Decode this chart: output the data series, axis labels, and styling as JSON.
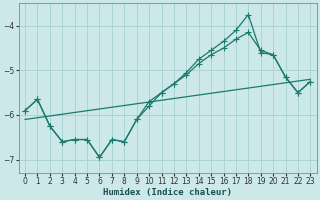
{
  "xlabel": "Humidex (Indice chaleur)",
  "bg_color": "#cce8e8",
  "grid_color": "#aad4d4",
  "line_color": "#1a7a6e",
  "xlim": [
    -0.5,
    23.5
  ],
  "ylim": [
    -7.3,
    -3.5
  ],
  "yticks": [
    -7,
    -6,
    -5,
    -4
  ],
  "xticks": [
    0,
    1,
    2,
    3,
    4,
    5,
    6,
    7,
    8,
    9,
    10,
    11,
    12,
    13,
    14,
    15,
    16,
    17,
    18,
    19,
    20,
    21,
    22,
    23
  ],
  "curve1_x": [
    0,
    1,
    2,
    3,
    4,
    5,
    6,
    7,
    8,
    9,
    10,
    11,
    12,
    13,
    14,
    15,
    16,
    17,
    18,
    19,
    20,
    21,
    22,
    23
  ],
  "curve1_y": [
    -5.9,
    -5.65,
    -6.25,
    -6.6,
    -6.55,
    -6.55,
    -6.95,
    -6.55,
    -6.6,
    -6.1,
    -5.8,
    -5.5,
    -5.3,
    -5.05,
    -4.75,
    -4.55,
    -4.35,
    -4.1,
    -3.75,
    -4.6,
    -4.65,
    -5.15,
    -5.5,
    -5.25
  ],
  "curve2_x": [
    0,
    1,
    2,
    3,
    4,
    5,
    6,
    7,
    8,
    9,
    10,
    11,
    12,
    13,
    14,
    15,
    16,
    17,
    18,
    19,
    20,
    21,
    22,
    23
  ],
  "curve2_y": [
    -5.9,
    -5.65,
    -6.25,
    -6.6,
    -6.55,
    -6.55,
    -6.95,
    -6.55,
    -6.6,
    -6.1,
    -5.7,
    -5.5,
    -5.3,
    -5.1,
    -4.85,
    -4.65,
    -4.5,
    -4.3,
    -4.15,
    -4.55,
    -4.65,
    -5.15,
    -5.5,
    -5.25
  ],
  "line3_x": [
    0,
    23
  ],
  "line3_y": [
    -6.1,
    -5.2
  ]
}
